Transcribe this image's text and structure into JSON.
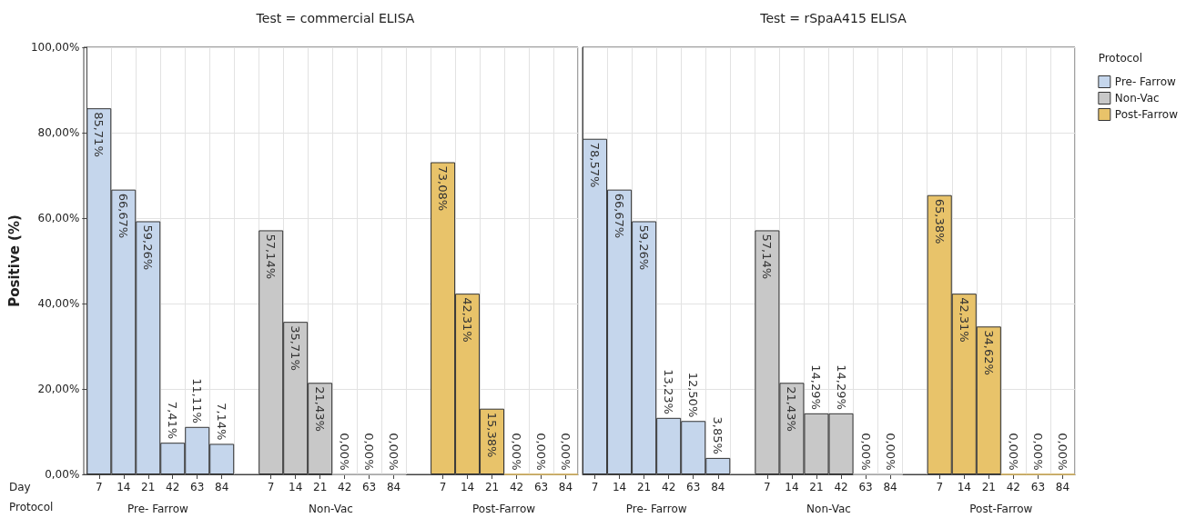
{
  "chart_data": [
    {
      "type": "bar",
      "title": "Test = commercial ELISA",
      "ylabel": "Positive (%)",
      "tick_labels": "xy",
      "grid": true,
      "legend": false,
      "categories": [
        "7",
        "14",
        "21",
        "42",
        "63",
        "84",
        null,
        "7",
        "14",
        "21",
        "42",
        "63",
        "84",
        null,
        "7",
        "14",
        "21",
        "42",
        "63",
        "84"
      ],
      "ylim": [
        0,
        100
      ],
      "yticks": [
        {
          "value": 0,
          "label": "0,00%"
        },
        {
          "value": 20,
          "label": "20,00%"
        },
        {
          "value": 40,
          "label": "40,00%"
        },
        {
          "value": 60,
          "label": "60,00%"
        },
        {
          "value": 80,
          "label": "80,00%"
        },
        {
          "value": 100,
          "label": "100,00%"
        }
      ],
      "annotations": [
        "Day",
        "Protocol"
      ],
      "series": [
        {
          "name": "Pre- Farrow",
          "color": "#c5d6ec",
          "values": [
            85.71,
            66.67,
            59.26,
            7.41,
            11.11,
            7.14,
            null,
            null,
            null,
            null,
            null,
            null,
            null,
            null,
            null,
            null,
            null,
            null,
            null,
            null
          ],
          "value_labels": [
            "85,71%",
            "66,67%",
            "59,26%",
            "7,41%",
            "11,11%",
            "7,14%",
            null,
            null,
            null,
            null,
            null,
            null,
            null,
            null,
            null,
            null,
            null,
            null,
            null,
            null
          ]
        },
        {
          "name": "Non-Vac",
          "color": "#c8c8c8",
          "values": [
            null,
            null,
            null,
            null,
            null,
            null,
            null,
            57.14,
            35.71,
            21.43,
            0,
            0,
            0,
            null,
            null,
            null,
            null,
            null,
            null,
            null
          ],
          "value_labels": [
            null,
            null,
            null,
            null,
            null,
            null,
            null,
            "57,14%",
            "35,71%",
            "21,43%",
            "0,00%",
            "0,00%",
            "0,00%",
            null,
            null,
            null,
            null,
            null,
            null,
            null
          ]
        },
        {
          "name": "Post-Farrow",
          "color": "#e8c36a",
          "values": [
            null,
            null,
            null,
            null,
            null,
            null,
            null,
            null,
            null,
            null,
            null,
            null,
            null,
            null,
            73.08,
            42.31,
            15.38,
            0,
            0,
            0
          ],
          "value_labels": [
            null,
            null,
            null,
            null,
            null,
            null,
            null,
            null,
            null,
            null,
            null,
            null,
            null,
            null,
            "73,08%",
            "42,31%",
            "15,38%",
            "0,00%",
            "0,00%",
            "0,00%"
          ]
        }
      ]
    },
    {
      "type": "bar",
      "title": "Test = rSpaA415 ELISA",
      "tick_labels": "x",
      "grid": true,
      "legend": "right",
      "legend_title": "Protocol",
      "categories": [
        "7",
        "14",
        "21",
        "42",
        "63",
        "84",
        null,
        "7",
        "14",
        "21",
        "42",
        "63",
        "84",
        null,
        "7",
        "14",
        "21",
        "42",
        "63",
        "84"
      ],
      "ylim": [
        0,
        100
      ],
      "yticks": [
        {
          "value": 0,
          "label": null
        },
        {
          "value": 20,
          "label": null
        },
        {
          "value": 40,
          "label": null
        },
        {
          "value": 60,
          "label": null
        },
        {
          "value": 80,
          "label": null
        },
        {
          "value": 100,
          "label": null
        }
      ],
      "series": [
        {
          "name": "Pre- Farrow",
          "color": "#c5d6ec",
          "values": [
            78.57,
            66.67,
            59.26,
            13.23,
            12.5,
            3.85,
            null,
            null,
            null,
            null,
            null,
            null,
            null,
            null,
            null,
            null,
            null,
            null,
            null,
            null
          ],
          "value_labels": [
            "78,57%",
            "66,67%",
            "59,26%",
            "13,23%",
            "12,50%",
            "3,85%",
            null,
            null,
            null,
            null,
            null,
            null,
            null,
            null,
            null,
            null,
            null,
            null,
            null,
            null
          ]
        },
        {
          "name": "Non-Vac",
          "color": "#c8c8c8",
          "values": [
            null,
            null,
            null,
            null,
            null,
            null,
            null,
            57.14,
            21.43,
            14.29,
            14.29,
            0,
            0,
            null,
            null,
            null,
            null,
            null,
            null,
            null
          ],
          "value_labels": [
            null,
            null,
            null,
            null,
            null,
            null,
            null,
            "57,14%",
            "21,43%",
            "14,29%",
            "14,29%",
            "0,00%",
            "0,00%",
            null,
            null,
            null,
            null,
            null,
            null,
            null
          ]
        },
        {
          "name": "Post-Farrow",
          "color": "#e8c36a",
          "values": [
            null,
            null,
            null,
            null,
            null,
            null,
            null,
            null,
            null,
            null,
            null,
            null,
            null,
            null,
            65.38,
            42.31,
            34.62,
            0,
            0,
            0
          ],
          "value_labels": [
            null,
            null,
            null,
            null,
            null,
            null,
            null,
            null,
            null,
            null,
            null,
            null,
            null,
            null,
            "65,38%",
            "42,31%",
            "34,62%",
            "0,00%",
            "0,00%",
            "0,00%"
          ]
        }
      ]
    }
  ]
}
